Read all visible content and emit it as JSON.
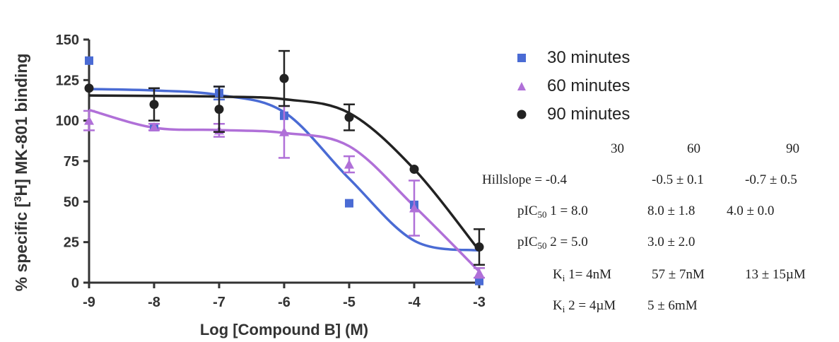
{
  "chart_data": {
    "type": "scatter",
    "title": "",
    "xlabel": "Log [Compound B] (M)",
    "ylabel": "% specific [3H] MK-801 binding",
    "ylabel_parts": [
      "% specific [",
      "3",
      "H] MK-801 binding"
    ],
    "xlim": [
      -9,
      -3
    ],
    "ylim": [
      0,
      150
    ],
    "xticks": [
      -9,
      -8,
      -7,
      -6,
      -5,
      -4,
      -3
    ],
    "yticks": [
      0,
      25,
      50,
      75,
      100,
      125,
      150
    ],
    "xtick_labels": [
      "-9",
      "-8",
      "-7",
      "-6",
      "-5",
      "-4",
      "-3"
    ],
    "ytick_labels": [
      "0",
      "25",
      "50",
      "75",
      "100",
      "125",
      "150"
    ],
    "legend_placement": "right",
    "series": [
      {
        "name": "30 minutes",
        "color": "#4a6bd4",
        "marker": "square",
        "x": [
          -9,
          -8,
          -7,
          -6,
          -5,
          -4,
          -3
        ],
        "y": [
          137,
          96,
          117,
          103,
          49,
          48,
          1
        ],
        "err": [
          0,
          0,
          4,
          0,
          0,
          0,
          0
        ],
        "fit_y": [
          119.5,
          118.6,
          115.8,
          105.2,
          64.2,
          25.9,
          19.8
        ]
      },
      {
        "name": "60 minutes",
        "color": "#b070d8",
        "marker": "triangle",
        "x": [
          -9,
          -8,
          -7,
          -6,
          -5,
          -4,
          -3
        ],
        "y": [
          100,
          96,
          94,
          93,
          73,
          46,
          6
        ],
        "err": [
          6,
          2,
          4,
          16,
          5,
          17,
          3
        ],
        "fit_y": [
          106.6,
          95.6,
          94.2,
          92.4,
          84.2,
          47.2,
          6.9
        ]
      },
      {
        "name": "90 minutes",
        "color": "#222222",
        "marker": "circle",
        "x": [
          -9,
          -8,
          -7,
          -6,
          -5,
          -4,
          -3
        ],
        "y": [
          120,
          110,
          107,
          126,
          102,
          70,
          22
        ],
        "err": [
          0,
          10,
          14,
          17,
          8,
          0,
          11
        ],
        "fit_y": [
          115.5,
          115.2,
          114.8,
          113.2,
          104.7,
          70.0,
          19.8
        ]
      }
    ]
  },
  "params": {
    "col_headers": [
      "30",
      "60",
      "90"
    ],
    "hillslope": {
      "label": "Hillslope = -0.4",
      "c60": "-0.5 ± 0.1",
      "c90": "-0.7 ± 0.5"
    },
    "pic50_1": {
      "prefix": "pIC",
      "sub": "50",
      "label_rest": " 1 = 8.0",
      "c60": "8.0 ± 1.8",
      "c90": "4.0 ± 0.0"
    },
    "pic50_2": {
      "prefix": "pIC",
      "sub": "50",
      "label_rest": " 2 = 5.0",
      "c60": "3.0 ± 2.0"
    },
    "ki_1": {
      "prefix": "K",
      "sub": "i",
      "label_rest": " 1= 4nM",
      "c60": "57 ± 7nM",
      "c90": "13 ± 15µM"
    },
    "ki_2": {
      "prefix": "K",
      "sub": "i",
      "label_rest": " 2 = 4µM",
      "c60": "5 ± 6mM"
    }
  }
}
